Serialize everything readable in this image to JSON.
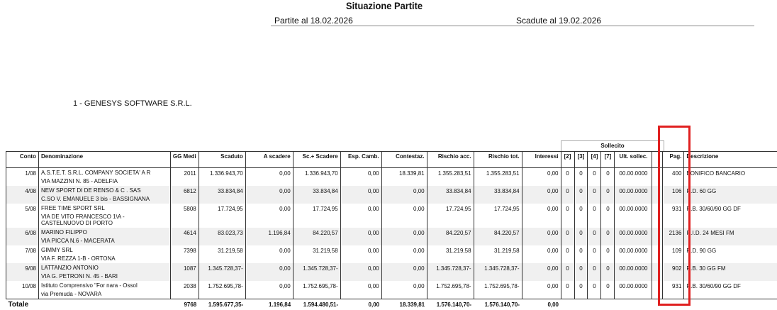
{
  "header": {
    "title": "Situazione Partite",
    "partite": "Partite al 18.02.2026",
    "scadute": "Scadute al 19.02.2026"
  },
  "company": "1 - GENESYS SOFTWARE S.R.L.",
  "sollecito_label": "Sollecito",
  "columns": [
    "Conto",
    "Denominazione",
    "GG Medi",
    "Scaduto",
    "A scadere",
    "Sc.+ Scadere",
    "Esp. Camb.",
    "Contestaz.",
    "Rischio acc.",
    "Rischio tot.",
    "Interessi",
    "[2]",
    "[3]",
    "[4]",
    "[7]",
    "Ult. sollec.",
    "",
    "Pag.",
    "Descrizione"
  ],
  "rows": [
    {
      "conto": "1/08",
      "nome": "A.S.T.E.T. S.R.L. COMPANY SOCIETA' A R",
      "indirizzo": "VIA MAZZINI N. 85 - ADELFIA",
      "gg": "2011",
      "scaduto": "1.336.943,70",
      "ascadere": "0,00",
      "sc_scadere": "1.336.943,70",
      "esp": "0,00",
      "contestaz": "18.339,81",
      "rischio_acc": "1.355.283,51",
      "rischio_tot": "1.355.283,51",
      "interessi": "0,00",
      "s2": "0",
      "s3": "0",
      "s4": "0",
      "s7": "0",
      "ult": "00.00.0000",
      "pag": "400",
      "descr": "BONIFICO BANCARIO"
    },
    {
      "conto": "4/08",
      "nome": "NEW SPORT DI DE RENSO & C . SAS",
      "indirizzo": "C.SO V. EMANUELE 3 bis - BASSIGNANA",
      "gg": "6812",
      "scaduto": "33.834,84",
      "ascadere": "0,00",
      "sc_scadere": "33.834,84",
      "esp": "0,00",
      "contestaz": "0,00",
      "rischio_acc": "33.834,84",
      "rischio_tot": "33.834,84",
      "interessi": "0,00",
      "s2": "0",
      "s3": "0",
      "s4": "0",
      "s7": "0",
      "ult": "00.00.0000",
      "pag": "106",
      "descr": "R.D. 60 GG"
    },
    {
      "conto": "5/08",
      "nome": "FREE TIME SPORT SRL",
      "indirizzo": "VIA DE VITO FRANCESCO 1\\A - CASTELNUOVO DI PORTO",
      "gg": "5808",
      "scaduto": "17.724,95",
      "ascadere": "0,00",
      "sc_scadere": "17.724,95",
      "esp": "0,00",
      "contestaz": "0,00",
      "rischio_acc": "17.724,95",
      "rischio_tot": "17.724,95",
      "interessi": "0,00",
      "s2": "0",
      "s3": "0",
      "s4": "0",
      "s7": "0",
      "ult": "00.00.0000",
      "pag": "931",
      "descr": "R.B. 30/60/90 GG DF"
    },
    {
      "conto": "6/08",
      "nome": "MARINO FILIPPO",
      "indirizzo": "VIA PICCA N.6 - MACERATA",
      "gg": "4614",
      "scaduto": "83.023,73",
      "ascadere": "1.196,84",
      "sc_scadere": "84.220,57",
      "esp": "0,00",
      "contestaz": "0,00",
      "rischio_acc": "84.220,57",
      "rischio_tot": "84.220,57",
      "interessi": "0,00",
      "s2": "0",
      "s3": "0",
      "s4": "0",
      "s7": "0",
      "ult": "00.00.0000",
      "pag": "2136",
      "descr": "R.I.D. 24 MESI FM"
    },
    {
      "conto": "7/08",
      "nome": "GIMMY SRL",
      "indirizzo": "VIA F. REZZA 1-B - ORTONA",
      "gg": "7398",
      "scaduto": "31.219,58",
      "ascadere": "0,00",
      "sc_scadere": "31.219,58",
      "esp": "0,00",
      "contestaz": "0,00",
      "rischio_acc": "31.219,58",
      "rischio_tot": "31.219,58",
      "interessi": "0,00",
      "s2": "0",
      "s3": "0",
      "s4": "0",
      "s7": "0",
      "ult": "00.00.0000",
      "pag": "109",
      "descr": "R.D. 90 GG"
    },
    {
      "conto": "9/08",
      "nome": "LATTANZIO ANTONIO",
      "indirizzo": "VIA G. PETRONI N. 45 - BARI",
      "gg": "1087",
      "scaduto": "1.345.728,37-",
      "ascadere": "0,00",
      "sc_scadere": "1.345.728,37-",
      "esp": "0,00",
      "contestaz": "0,00",
      "rischio_acc": "1.345.728,37-",
      "rischio_tot": "1.345.728,37-",
      "interessi": "0,00",
      "s2": "0",
      "s3": "0",
      "s4": "0",
      "s7": "0",
      "ult": "00.00.0000",
      "pag": "902",
      "descr": "R.B. 30 GG FM"
    },
    {
      "conto": "10/08",
      "nome": "Istituto Comprensivo \"For nara - Ossol",
      "indirizzo": "via Premuda - NOVARA",
      "gg": "2038",
      "scaduto": "1.752.695,78-",
      "ascadere": "0,00",
      "sc_scadere": "1.752.695,78-",
      "esp": "0,00",
      "contestaz": "0,00",
      "rischio_acc": "1.752.695,78-",
      "rischio_tot": "1.752.695,78-",
      "interessi": "0,00",
      "s2": "0",
      "s3": "0",
      "s4": "0",
      "s7": "0",
      "ult": "00.00.0000",
      "pag": "931",
      "descr": "R.B. 30/60/90 GG DF"
    }
  ],
  "totale": {
    "label": "Totale",
    "gg": "9768",
    "scaduto": "1.595.677,35-",
    "ascadere": "1.196,84",
    "sc_scadere": "1.594.480,51-",
    "esp": "0,00",
    "contestaz": "18.339,81",
    "rischio_acc": "1.576.140,70-",
    "rischio_tot": "1.576.140,70-",
    "interessi": "0,00"
  },
  "highlight_color": "#e02020"
}
